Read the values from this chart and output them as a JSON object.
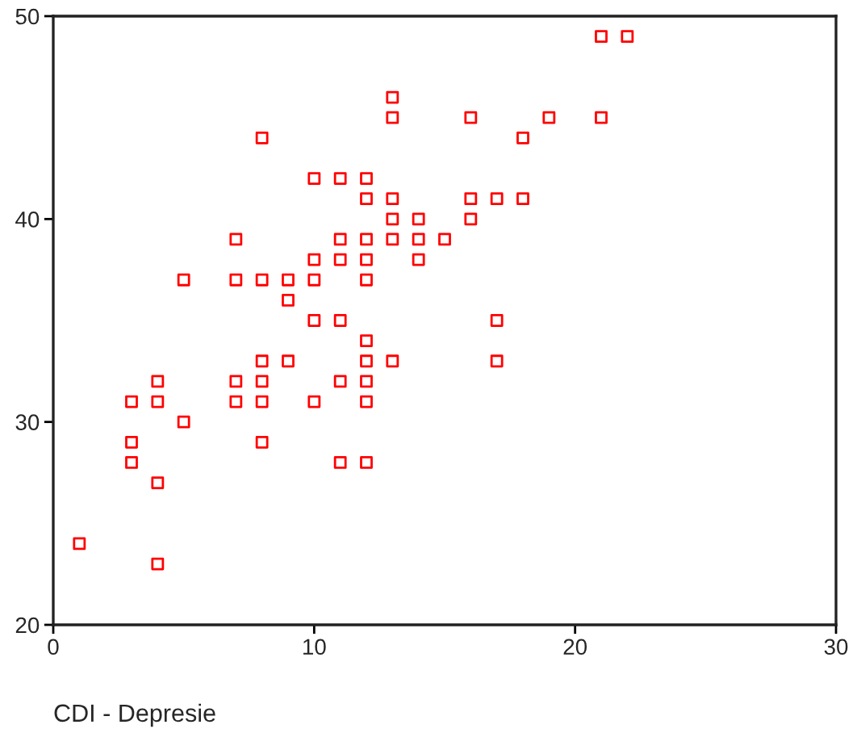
{
  "chart_data": {
    "type": "scatter",
    "xlabel": "CDI - Depresie",
    "color": "#ff0000",
    "marker": "square",
    "grid": false,
    "x": [
      1,
      3,
      3,
      3,
      4,
      4,
      4,
      4,
      5,
      5,
      7,
      7,
      7,
      7,
      8,
      8,
      8,
      8,
      8,
      8,
      9,
      9,
      9,
      10,
      10,
      10,
      10,
      10,
      11,
      11,
      11,
      11,
      11,
      11,
      12,
      12,
      12,
      12,
      12,
      12,
      12,
      12,
      12,
      12,
      13,
      13,
      13,
      13,
      13,
      13,
      14,
      14,
      14,
      15,
      16,
      16,
      16,
      17,
      17,
      17,
      18,
      18,
      19,
      21,
      21,
      22
    ],
    "values": [
      24,
      31,
      29,
      28,
      32,
      31,
      27,
      23,
      37,
      30,
      39,
      37,
      32,
      31,
      44,
      37,
      33,
      32,
      31,
      29,
      37,
      36,
      33,
      42,
      38,
      37,
      35,
      31,
      42,
      39,
      38,
      35,
      32,
      28,
      42,
      41,
      39,
      38,
      37,
      34,
      33,
      32,
      31,
      28,
      46,
      45,
      41,
      40,
      39,
      33,
      40,
      39,
      38,
      39,
      45,
      41,
      40,
      41,
      35,
      33,
      44,
      41,
      45,
      49,
      45,
      49
    ],
    "xlim": [
      0,
      30
    ],
    "ylim": [
      20,
      50
    ],
    "xticks": [
      0,
      10,
      20,
      30
    ],
    "yticks": [
      20,
      30,
      40,
      50
    ]
  }
}
